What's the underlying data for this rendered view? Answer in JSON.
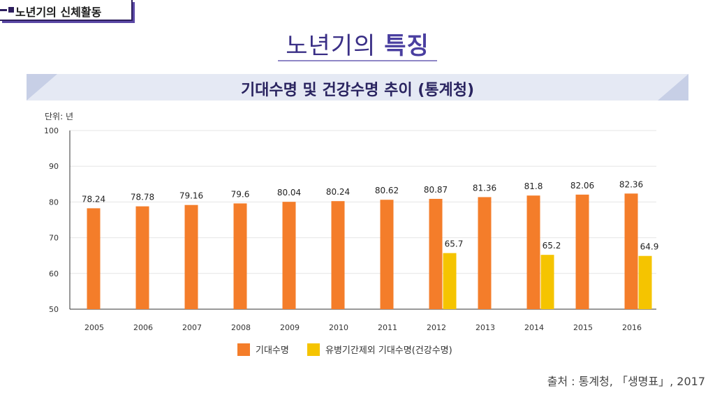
{
  "header": {
    "section_tab": "노년기의 신체활동"
  },
  "title": {
    "plain": "노년기의",
    "bold": "특징"
  },
  "band_title": "기대수명 및 건강수명 추이 (통계청)",
  "source": "출처 : 통계청, 「생명표」, 2017",
  "colors": {
    "life_expectancy": "#f47d2a",
    "healthy_life": "#f5c400"
  },
  "chart_data": {
    "type": "bar",
    "unit_label": "단위: 년",
    "categories": [
      "2005",
      "2006",
      "2007",
      "2008",
      "2009",
      "2010",
      "2011",
      "2012",
      "2013",
      "2014",
      "2015",
      "2016"
    ],
    "ylim": [
      50,
      100
    ],
    "yticks": [
      50,
      60,
      70,
      80,
      90,
      100
    ],
    "grid": true,
    "legend_position": "bottom",
    "series": [
      {
        "name": "기대수명",
        "values": [
          78.24,
          78.78,
          79.16,
          79.6,
          80.04,
          80.24,
          80.62,
          80.87,
          81.36,
          81.8,
          82.06,
          82.36
        ]
      },
      {
        "name": "유병기간제외 기대수명(건강수명)",
        "values": [
          null,
          null,
          null,
          null,
          null,
          null,
          null,
          65.7,
          null,
          65.2,
          null,
          64.9
        ]
      }
    ]
  }
}
